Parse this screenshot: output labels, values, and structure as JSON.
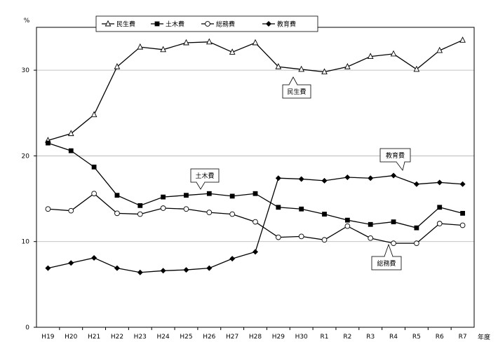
{
  "chart_data": {
    "type": "line",
    "ylabel": "%",
    "xlabel": "年度",
    "ylim": [
      0,
      35
    ],
    "yticks": [
      0,
      10,
      20,
      30
    ],
    "grid": true,
    "legend_position": "top",
    "categories": [
      "H19",
      "H20",
      "H21",
      "H22",
      "H23",
      "H24",
      "H25",
      "H26",
      "H27",
      "H28",
      "H29",
      "H30",
      "R1",
      "R2",
      "R3",
      "R4",
      "R5",
      "R6",
      "R7"
    ],
    "series": [
      {
        "name": "民生費",
        "marker": "triangle-open",
        "values": [
          21.8,
          22.6,
          24.8,
          30.4,
          32.7,
          32.4,
          33.2,
          33.3,
          32.1,
          33.2,
          30.4,
          30.1,
          29.8,
          30.4,
          31.6,
          31.9,
          30.1,
          32.3,
          33.5
        ]
      },
      {
        "name": "土木費",
        "marker": "square-filled",
        "values": [
          21.5,
          20.6,
          18.7,
          15.4,
          14.2,
          15.2,
          15.4,
          15.6,
          15.3,
          15.6,
          14.0,
          13.8,
          13.2,
          12.5,
          12.0,
          12.3,
          11.6,
          14.0,
          13.3
        ]
      },
      {
        "name": "総務費",
        "marker": "circle-open",
        "values": [
          13.8,
          13.6,
          15.6,
          13.3,
          13.2,
          13.9,
          13.8,
          13.4,
          13.2,
          12.3,
          10.5,
          10.6,
          10.2,
          11.8,
          10.4,
          9.8,
          9.8,
          12.1,
          11.9
        ]
      },
      {
        "name": "教育費",
        "marker": "diamond-filled",
        "values": [
          6.9,
          7.5,
          8.1,
          6.9,
          6.4,
          6.6,
          6.7,
          6.9,
          8.0,
          8.8,
          17.4,
          17.3,
          17.1,
          17.5,
          17.4,
          17.7,
          16.7,
          16.9,
          16.7
        ]
      }
    ],
    "annotations": [
      {
        "series": "民生費",
        "text": "民生費"
      },
      {
        "series": "教育費",
        "text": "教育費"
      },
      {
        "series": "土木費",
        "text": "土木費"
      },
      {
        "series": "総務費",
        "text": "総務費"
      }
    ]
  }
}
